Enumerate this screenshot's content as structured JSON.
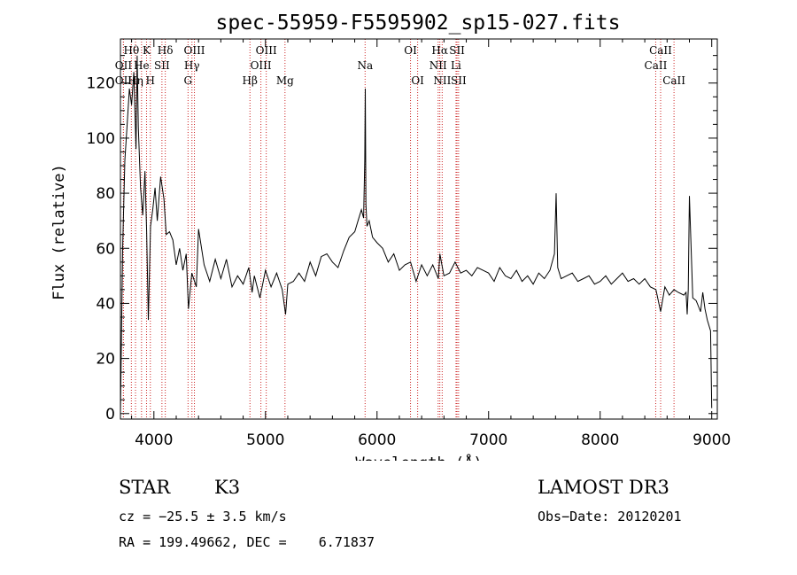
{
  "chart_data": {
    "type": "line",
    "title": "spec-55959-F5595902_sp15-027.fits",
    "xlabel": "Wavelength (Å)",
    "ylabel": "Flux (relative)",
    "xlim": [
      3700,
      9050
    ],
    "ylim": [
      -2,
      136
    ],
    "x_ticks": [
      4000,
      5000,
      6000,
      7000,
      8000,
      9000
    ],
    "y_ticks": [
      0,
      20,
      40,
      60,
      80,
      100,
      120
    ],
    "series": [
      {
        "name": "flux",
        "x": [
          3700,
          3720,
          3740,
          3760,
          3780,
          3800,
          3820,
          3840,
          3850,
          3860,
          3880,
          3900,
          3920,
          3935,
          3950,
          3970,
          3990,
          4010,
          4030,
          4060,
          4090,
          4110,
          4140,
          4170,
          4200,
          4230,
          4260,
          4290,
          4310,
          4340,
          4380,
          4400,
          4450,
          4500,
          4550,
          4600,
          4650,
          4700,
          4750,
          4800,
          4850,
          4880,
          4900,
          4950,
          5000,
          5050,
          5100,
          5150,
          5180,
          5200,
          5250,
          5300,
          5350,
          5400,
          5450,
          5500,
          5550,
          5600,
          5650,
          5700,
          5750,
          5800,
          5830,
          5860,
          5880,
          5890,
          5895,
          5900,
          5910,
          5930,
          5960,
          6000,
          6050,
          6100,
          6150,
          6200,
          6250,
          6300,
          6350,
          6400,
          6450,
          6500,
          6550,
          6563,
          6600,
          6650,
          6700,
          6750,
          6800,
          6850,
          6900,
          6950,
          7000,
          7050,
          7100,
          7150,
          7200,
          7250,
          7300,
          7350,
          7400,
          7450,
          7500,
          7550,
          7590,
          7605,
          7620,
          7650,
          7700,
          7750,
          7800,
          7850,
          7900,
          7950,
          8000,
          8050,
          8100,
          8150,
          8200,
          8250,
          8300,
          8350,
          8400,
          8450,
          8500,
          8542,
          8580,
          8620,
          8662,
          8700,
          8750,
          8770,
          8780,
          8790,
          8800,
          8830,
          8860,
          8880,
          8900,
          8920,
          8940,
          8960,
          8990,
          9000
        ],
        "y": [
          0,
          60,
          92,
          105,
          118,
          112,
          124,
          96,
          130,
          104,
          82,
          72,
          88,
          66,
          34,
          68,
          74,
          82,
          70,
          86,
          78,
          65,
          66,
          63,
          54,
          60,
          52,
          58,
          38,
          51,
          46,
          67,
          54,
          48,
          56,
          49,
          56,
          46,
          50,
          47,
          53,
          44,
          50,
          42,
          52,
          46,
          51,
          45,
          36,
          47,
          48,
          51,
          48,
          55,
          50,
          57,
          58,
          55,
          53,
          59,
          64,
          66,
          70,
          74,
          71,
          92,
          118,
          76,
          68,
          70,
          64,
          62,
          60,
          55,
          58,
          52,
          54,
          55,
          48,
          54,
          50,
          54,
          49,
          58,
          50,
          51,
          55,
          51,
          52,
          50,
          53,
          52,
          51,
          48,
          53,
          50,
          49,
          52,
          48,
          50,
          47,
          51,
          49,
          52,
          58,
          80,
          53,
          49,
          50,
          51,
          48,
          49,
          50,
          47,
          48,
          50,
          47,
          49,
          51,
          48,
          49,
          47,
          49,
          46,
          45,
          37,
          46,
          43,
          45,
          44,
          43,
          44,
          36,
          45,
          79,
          42,
          41,
          39,
          37,
          44,
          38,
          34,
          30,
          2
        ]
      }
    ],
    "lines": [
      {
        "label": "Hθ",
        "x": 3798,
        "row": 0
      },
      {
        "label": "OII",
        "x": 3727,
        "row": 1
      },
      {
        "label": "OII",
        "x": 3727,
        "row": 2
      },
      {
        "label": "Hη",
        "x": 3835,
        "row": 2
      },
      {
        "label": "He",
        "x": 3889,
        "row": 1
      },
      {
        "label": "K",
        "x": 3934,
        "row": 0
      },
      {
        "label": "H",
        "x": 3968,
        "row": 2
      },
      {
        "label": "SII",
        "x": 4072,
        "row": 1
      },
      {
        "label": "Hδ",
        "x": 4102,
        "row": 0
      },
      {
        "label": "G",
        "x": 4306,
        "row": 2
      },
      {
        "label": "Hγ",
        "x": 4341,
        "row": 1
      },
      {
        "label": "OIII",
        "x": 4363,
        "row": 0
      },
      {
        "label": "Hβ",
        "x": 4861,
        "row": 2
      },
      {
        "label": "OIII",
        "x": 4959,
        "row": 1
      },
      {
        "label": "OIII",
        "x": 5007,
        "row": 0
      },
      {
        "label": "Mg",
        "x": 5175,
        "row": 2
      },
      {
        "label": "Na",
        "x": 5893,
        "row": 1
      },
      {
        "label": "OI",
        "x": 6300,
        "row": 0
      },
      {
        "label": "OI",
        "x": 6364,
        "row": 2
      },
      {
        "label": "NII",
        "x": 6548,
        "row": 1
      },
      {
        "label": "Hα",
        "x": 6563,
        "row": 0
      },
      {
        "label": "NII",
        "x": 6584,
        "row": 2
      },
      {
        "label": "SII",
        "x": 6717,
        "row": 0
      },
      {
        "label": "SII",
        "x": 6731,
        "row": 2
      },
      {
        "label": "Li",
        "x": 6708,
        "row": 1
      },
      {
        "label": "CaII",
        "x": 8498,
        "row": 1
      },
      {
        "label": "CaII",
        "x": 8542,
        "row": 0
      },
      {
        "label": "CaII",
        "x": 8662,
        "row": 2
      }
    ]
  },
  "info": {
    "object_class": "STAR",
    "subclass": "K3",
    "survey": "LAMOST DR3",
    "cz": "cz = −25.5 ± 3.5 km/s",
    "obs_date": "Obs−Date: 20120201",
    "coords": "RA = 199.49662, DEC =    6.71837"
  },
  "colors": {
    "line_marker": "#cc2222",
    "spectrum": "#000000",
    "axes": "#000000"
  }
}
